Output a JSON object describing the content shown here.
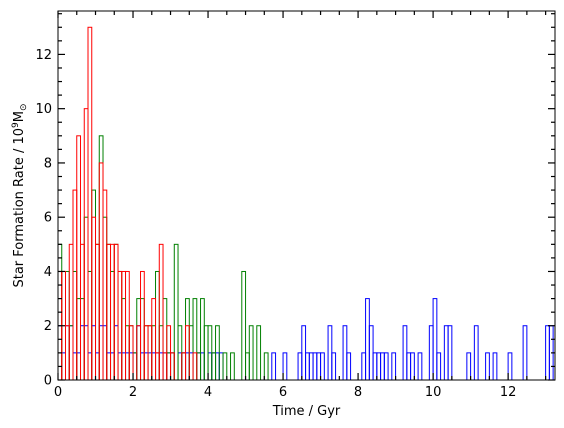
{
  "chart_data": {
    "type": "histogram",
    "title": "",
    "xlabel": "Time / Gyr",
    "ylabel": "Star Formation Rate / 10⁹M⊙",
    "ylabel_parts": {
      "main": "Star Formation Rate / 10",
      "exp": "9",
      "unit": "M",
      "sub": "⊙"
    },
    "xlim": [
      0,
      13.25
    ],
    "ylim": [
      0,
      13.6
    ],
    "xticks": [
      0,
      2,
      4,
      6,
      8,
      10,
      12
    ],
    "xtick_labels": [
      "0",
      "2",
      "4",
      "6",
      "8",
      "10",
      "12"
    ],
    "yticks": [
      0,
      2,
      4,
      6,
      8,
      10,
      12
    ],
    "ytick_labels": [
      "0",
      "2",
      "4",
      "6",
      "8",
      "10",
      "12"
    ],
    "bin_width": 0.1,
    "grid": false,
    "legend": "none",
    "series": [
      {
        "color": "#0000ff",
        "bins": [
          [
            0.0,
            2
          ],
          [
            0.1,
            1
          ],
          [
            0.2,
            2
          ],
          [
            0.3,
            2
          ],
          [
            0.4,
            1
          ],
          [
            0.5,
            1
          ],
          [
            0.6,
            2
          ],
          [
            0.7,
            2
          ],
          [
            0.8,
            1
          ],
          [
            0.9,
            2
          ],
          [
            1.0,
            1
          ],
          [
            1.1,
            2
          ],
          [
            1.2,
            2
          ],
          [
            1.3,
            1
          ],
          [
            1.4,
            1
          ],
          [
            1.5,
            2
          ],
          [
            1.6,
            1
          ],
          [
            1.7,
            1
          ],
          [
            1.8,
            1
          ],
          [
            1.9,
            1
          ],
          [
            2.0,
            1
          ],
          [
            2.1,
            2
          ],
          [
            2.2,
            1
          ],
          [
            2.3,
            1
          ],
          [
            2.4,
            1
          ],
          [
            2.5,
            1
          ],
          [
            2.6,
            1
          ],
          [
            2.7,
            1
          ],
          [
            2.8,
            1
          ],
          [
            2.9,
            1
          ],
          [
            3.0,
            1
          ],
          [
            3.2,
            1
          ],
          [
            3.3,
            1
          ],
          [
            3.4,
            1
          ],
          [
            3.5,
            1
          ],
          [
            3.7,
            1
          ],
          [
            3.8,
            1
          ],
          [
            4.0,
            1
          ],
          [
            4.1,
            1
          ],
          [
            4.2,
            1
          ],
          [
            4.3,
            1
          ],
          [
            5.7,
            1
          ],
          [
            6.0,
            1
          ],
          [
            6.4,
            1
          ],
          [
            6.5,
            2
          ],
          [
            6.6,
            1
          ],
          [
            6.7,
            1
          ],
          [
            6.8,
            1
          ],
          [
            6.9,
            1
          ],
          [
            7.0,
            1
          ],
          [
            7.2,
            2
          ],
          [
            7.3,
            1
          ],
          [
            7.6,
            2
          ],
          [
            7.7,
            1
          ],
          [
            8.1,
            1
          ],
          [
            8.2,
            3
          ],
          [
            8.3,
            2
          ],
          [
            8.4,
            1
          ],
          [
            8.5,
            1
          ],
          [
            8.6,
            1
          ],
          [
            8.7,
            1
          ],
          [
            8.9,
            1
          ],
          [
            9.2,
            2
          ],
          [
            9.3,
            1
          ],
          [
            9.4,
            1
          ],
          [
            9.6,
            1
          ],
          [
            9.9,
            2
          ],
          [
            10.0,
            3
          ],
          [
            10.1,
            1
          ],
          [
            10.3,
            2
          ],
          [
            10.4,
            2
          ],
          [
            10.9,
            1
          ],
          [
            11.1,
            2
          ],
          [
            11.4,
            1
          ],
          [
            11.6,
            1
          ],
          [
            12.0,
            1
          ],
          [
            12.4,
            2
          ],
          [
            13.0,
            2
          ],
          [
            13.1,
            2
          ]
        ]
      },
      {
        "color": "#008000",
        "bins": [
          [
            0.0,
            5
          ],
          [
            0.1,
            4
          ],
          [
            0.2,
            4
          ],
          [
            0.3,
            2
          ],
          [
            0.4,
            4
          ],
          [
            0.5,
            3
          ],
          [
            0.6,
            3
          ],
          [
            0.7,
            6
          ],
          [
            0.8,
            4
          ],
          [
            0.9,
            7
          ],
          [
            1.0,
            5
          ],
          [
            1.1,
            9
          ],
          [
            1.2,
            6
          ],
          [
            1.3,
            5
          ],
          [
            1.4,
            4
          ],
          [
            1.5,
            5
          ],
          [
            1.6,
            4
          ],
          [
            1.7,
            3
          ],
          [
            1.8,
            2
          ],
          [
            1.9,
            2
          ],
          [
            2.0,
            1
          ],
          [
            2.1,
            3
          ],
          [
            2.2,
            3
          ],
          [
            2.3,
            2
          ],
          [
            2.4,
            2
          ],
          [
            2.5,
            2
          ],
          [
            2.6,
            4
          ],
          [
            2.7,
            2
          ],
          [
            2.8,
            3
          ],
          [
            2.9,
            1
          ],
          [
            3.0,
            1
          ],
          [
            3.1,
            5
          ],
          [
            3.2,
            2
          ],
          [
            3.3,
            1
          ],
          [
            3.4,
            3
          ],
          [
            3.5,
            2
          ],
          [
            3.6,
            3
          ],
          [
            3.7,
            1
          ],
          [
            3.8,
            3
          ],
          [
            3.9,
            2
          ],
          [
            4.0,
            2
          ],
          [
            4.1,
            1
          ],
          [
            4.2,
            2
          ],
          [
            4.4,
            1
          ],
          [
            4.6,
            1
          ],
          [
            4.9,
            4
          ],
          [
            5.0,
            1
          ],
          [
            5.1,
            2
          ],
          [
            5.3,
            2
          ],
          [
            5.5,
            1
          ]
        ]
      },
      {
        "color": "#ff0000",
        "bins": [
          [
            0.0,
            4
          ],
          [
            0.1,
            4
          ],
          [
            0.2,
            2
          ],
          [
            0.3,
            5
          ],
          [
            0.4,
            7
          ],
          [
            0.5,
            9
          ],
          [
            0.6,
            5
          ],
          [
            0.7,
            10
          ],
          [
            0.8,
            13
          ],
          [
            0.9,
            6
          ],
          [
            1.0,
            5
          ],
          [
            1.1,
            8
          ],
          [
            1.2,
            7
          ],
          [
            1.3,
            5
          ],
          [
            1.4,
            5
          ],
          [
            1.5,
            5
          ],
          [
            1.6,
            4
          ],
          [
            1.7,
            4
          ],
          [
            1.8,
            4
          ],
          [
            1.9,
            2
          ],
          [
            2.1,
            2
          ],
          [
            2.2,
            4
          ],
          [
            2.3,
            2
          ],
          [
            2.4,
            2
          ],
          [
            2.5,
            3
          ],
          [
            2.6,
            1
          ],
          [
            2.7,
            5
          ],
          [
            2.8,
            1
          ],
          [
            2.9,
            2
          ],
          [
            3.0,
            1
          ],
          [
            3.3,
            1
          ],
          [
            3.4,
            2
          ],
          [
            3.6,
            1
          ]
        ]
      }
    ]
  }
}
